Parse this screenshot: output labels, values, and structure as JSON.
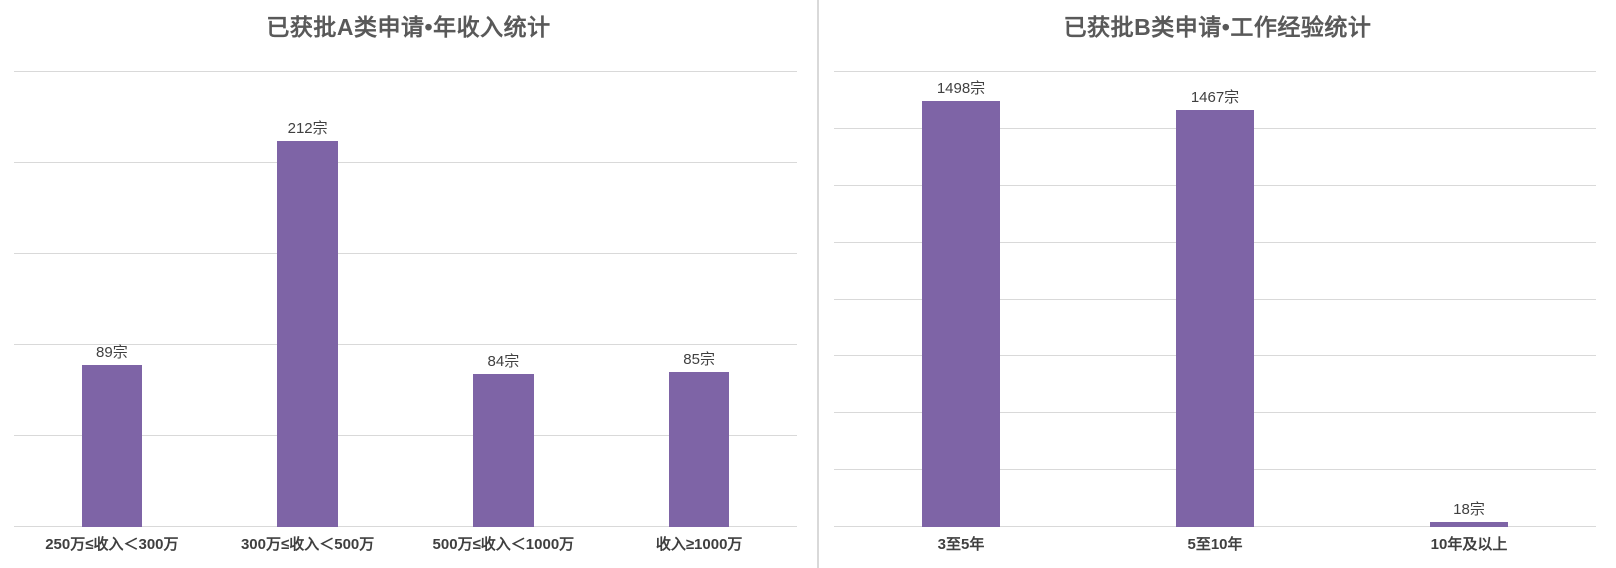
{
  "page": {
    "background_color": "#ffffff",
    "divider_color": "#d9d9d9"
  },
  "chart_data": [
    {
      "type": "bar",
      "title": "已获批A类申请•年收入统计",
      "categories": [
        "250万≤收入＜300万",
        "300万≤收入＜500万",
        "500万≤收入＜1000万",
        "收入≥1000万"
      ],
      "values": [
        89,
        212,
        84,
        85
      ],
      "labels": [
        "89宗",
        "212宗",
        "84宗",
        "85宗"
      ],
      "unit": "宗",
      "xlabel": "",
      "ylabel": "",
      "ylim": [
        0,
        250
      ],
      "ystep": 50,
      "yticks_visible": false,
      "grid": true,
      "legend_position": "none",
      "bar_color": "#7e64a6",
      "grid_color": "#d9d9d9"
    },
    {
      "type": "bar",
      "title": "已获批B类申请•工作经验统计",
      "categories": [
        "3至5年",
        "5至10年",
        "10年及以上"
      ],
      "values": [
        1498,
        1467,
        18
      ],
      "labels": [
        "1498宗",
        "1467宗",
        "18宗"
      ],
      "unit": "宗",
      "xlabel": "",
      "ylabel": "",
      "ylim": [
        0,
        1600
      ],
      "ystep": 200,
      "yticks_visible": false,
      "grid": true,
      "legend_position": "none",
      "bar_color": "#7e64a6",
      "grid_color": "#d9d9d9"
    }
  ]
}
